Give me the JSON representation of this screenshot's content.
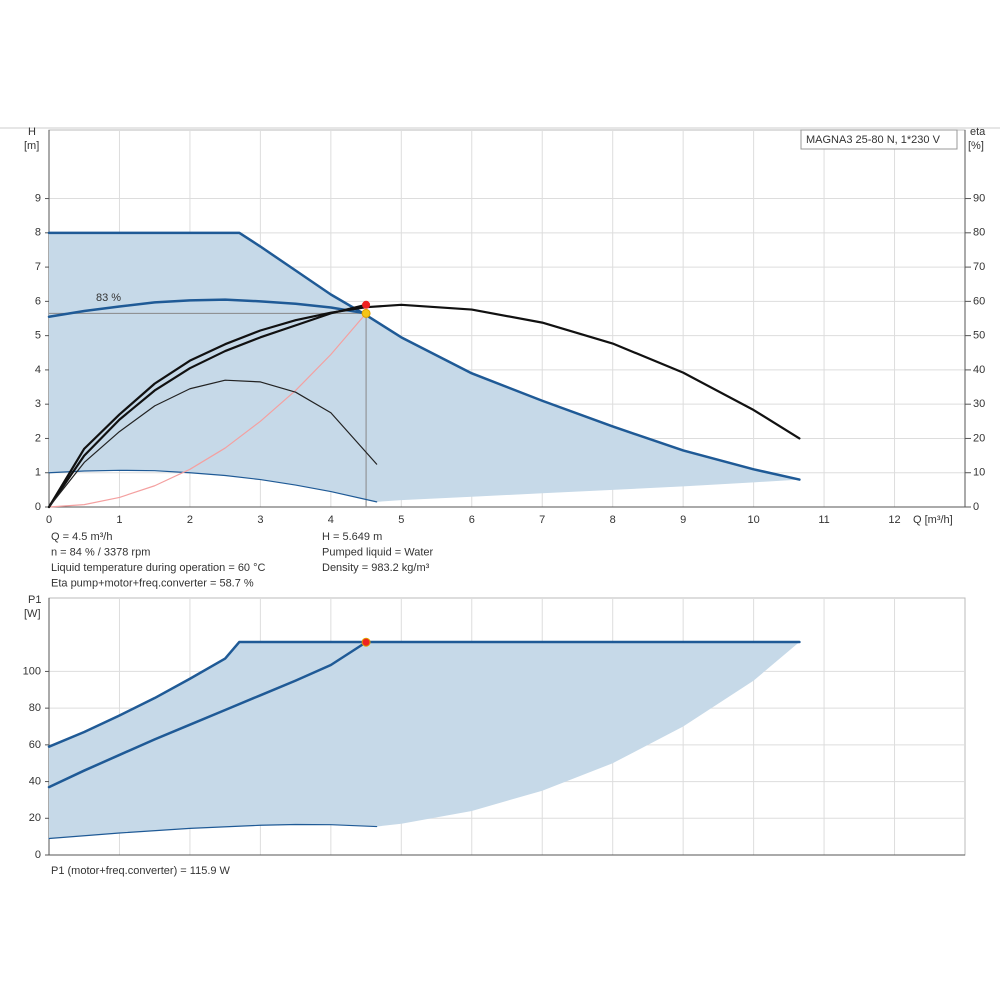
{
  "chart_data": [
    {
      "type": "line",
      "title": "MAGNA3 25-80 N, 1*230 V",
      "ylabel": "H",
      "yunit": "[m]",
      "y2label": "eta",
      "y2unit": "[%]",
      "xlabel": "Q [m³/h]",
      "xlim": [
        0,
        13
      ],
      "xticks": [
        0,
        1,
        2,
        3,
        4,
        5,
        6,
        7,
        8,
        9,
        10,
        11,
        12
      ],
      "ylim": [
        0,
        11
      ],
      "yticks": [
        0,
        1,
        2,
        3,
        4,
        5,
        6,
        7,
        8,
        9
      ],
      "y2lim": [
        0,
        110
      ],
      "y2ticks": [
        0,
        10,
        20,
        30,
        40,
        50,
        60,
        70,
        80,
        90
      ],
      "grid": true,
      "xtick_labels": true,
      "area": {
        "color": "#c6d9e8",
        "x": [
          0,
          2.7,
          3,
          3.5,
          4,
          4.5,
          5,
          6,
          7,
          8,
          9,
          10,
          10.65,
          10,
          9,
          8,
          7,
          6,
          5,
          4.65,
          4,
          3.5,
          3,
          2.5,
          2,
          1.5,
          1,
          0.5,
          0
        ],
        "values": [
          8,
          8,
          7.6,
          6.9,
          6.2,
          5.6,
          4.95,
          3.9,
          3.1,
          2.35,
          1.65,
          1.1,
          0.8,
          0.72,
          0.6,
          0.5,
          0.4,
          0.3,
          0.2,
          0.15,
          0.45,
          0.64,
          0.8,
          0.92,
          1.0,
          1.06,
          1.07,
          1.05,
          1.0
        ]
      },
      "series": [
        {
          "color": "#1f5a96",
          "line_width": 2.5,
          "x": [
            0,
            2.7,
            3,
            3.5,
            4,
            4.5,
            5,
            6,
            7,
            8,
            9,
            10,
            10.65
          ],
          "values": [
            8,
            8,
            7.6,
            6.9,
            6.2,
            5.6,
            4.95,
            3.9,
            3.1,
            2.35,
            1.65,
            1.1,
            0.8
          ]
        },
        {
          "color": "#1f5a96",
          "line_width": 1.2,
          "x": [
            0,
            0.5,
            1,
            1.5,
            2,
            2.5,
            3,
            3.5,
            4,
            4.65
          ],
          "values": [
            1,
            1.05,
            1.07,
            1.06,
            1.0,
            0.92,
            0.8,
            0.64,
            0.45,
            0.15
          ]
        },
        {
          "color": "#1f5a96",
          "line_width": 2.5,
          "x": [
            0,
            0.5,
            1,
            1.5,
            2,
            2.5,
            3,
            3.5,
            4,
            4.5
          ],
          "values": [
            5.55,
            5.72,
            5.85,
            5.97,
            6.03,
            6.05,
            6.0,
            5.93,
            5.82,
            5.65
          ]
        },
        {
          "color": "#f4a0a0",
          "line_width": 1.2,
          "x": [
            0,
            0.5,
            1,
            1.5,
            2,
            2.5,
            3,
            3.5,
            4,
            4.5
          ],
          "values": [
            0,
            0.07,
            0.28,
            0.62,
            1.1,
            1.72,
            2.5,
            3.4,
            4.45,
            5.649
          ]
        },
        {
          "color": "#111111",
          "line_width": 2.2,
          "axis": "y2",
          "x": [
            0,
            0.5,
            1,
            1.5,
            2,
            2.5,
            3,
            3.5,
            4,
            4.5,
            5,
            6,
            7,
            8,
            9,
            10,
            10.65
          ],
          "values": [
            0,
            17,
            27,
            36,
            42.7,
            47.5,
            51.5,
            54.5,
            56.7,
            58.3,
            59,
            57.6,
            53.8,
            47.7,
            39.2,
            28.3,
            20
          ]
        },
        {
          "color": "#111111",
          "line_width": 2.2,
          "axis": "y2",
          "x": [
            0,
            0.5,
            1,
            1.5,
            2,
            2.5,
            3,
            3.5,
            4,
            4.5
          ],
          "values": [
            0,
            15,
            25.5,
            34,
            40.5,
            45.5,
            49.5,
            53,
            56.5,
            59
          ]
        },
        {
          "color": "#222222",
          "line_width": 1.2,
          "axis": "y2",
          "x": [
            0,
            0.5,
            1,
            1.5,
            2,
            2.5,
            3,
            3.5,
            4,
            4.65
          ],
          "values": [
            0,
            13,
            22,
            29.5,
            34.5,
            37,
            36.5,
            33.5,
            27.5,
            12.5
          ]
        }
      ],
      "annotation": "83 %",
      "duty_point": {
        "x": 4.5,
        "y": 5.649,
        "color": "#f5c518"
      },
      "eta_point": {
        "x": 4.5,
        "y": 59,
        "color": "#ee2222"
      },
      "info_left": [
        "Q = 4.5 m³/h",
        "n = 84 % / 3378 rpm",
        "Liquid temperature during operation = 60 °C",
        "Eta pump+motor+freq.converter = 58.7 %"
      ],
      "info_right": [
        "H = 5.649 m",
        "Pumped liquid = Water",
        "Density = 983.2 kg/m³"
      ]
    },
    {
      "type": "line",
      "ylabel": "P1",
      "yunit": "[W]",
      "xlim": [
        0,
        13
      ],
      "xticks": [
        0,
        1,
        2,
        3,
        4,
        5,
        6,
        7,
        8,
        9,
        10,
        11,
        12
      ],
      "ylim": [
        0,
        140
      ],
      "yticks": [
        0,
        20,
        40,
        60,
        80,
        100
      ],
      "grid": true,
      "xtick_labels": false,
      "area": {
        "color": "#c6d9e8",
        "x": [
          0,
          0.5,
          1,
          1.5,
          2,
          2.5,
          2.7,
          10.65,
          10,
          9,
          8,
          7,
          6,
          5,
          4.65,
          4,
          3.5,
          3,
          2,
          1,
          0
        ],
        "values": [
          59,
          67,
          76,
          85.5,
          96,
          107,
          116,
          116,
          95,
          70,
          50,
          35,
          24,
          17,
          15.5,
          16.5,
          16.6,
          16.2,
          14.5,
          12,
          9
        ]
      },
      "series": [
        {
          "color": "#1f5a96",
          "line_width": 2.5,
          "x": [
            0,
            0.5,
            1,
            1.5,
            2,
            2.5,
            2.7,
            10.65
          ],
          "values": [
            59,
            67,
            76,
            85.5,
            96,
            107,
            116,
            116
          ]
        },
        {
          "color": "#1f5a96",
          "line_width": 2.5,
          "x": [
            0,
            0.5,
            1,
            1.5,
            2,
            2.5,
            3,
            3.5,
            4,
            4.5
          ],
          "values": [
            37,
            46,
            54.5,
            63,
            71,
            79,
            87,
            95,
            103.5,
            115.9
          ]
        },
        {
          "color": "#1f5a96",
          "line_width": 1.2,
          "x": [
            0,
            1,
            2,
            3,
            3.5,
            4,
            4.65
          ],
          "values": [
            9,
            12,
            14.5,
            16.2,
            16.6,
            16.5,
            15.5
          ]
        }
      ],
      "duty_point": {
        "x": 4.5,
        "y": 115.9,
        "color": "#ee2222"
      },
      "info_left": [
        "P1 (motor+freq.converter) = 115.9 W"
      ]
    }
  ]
}
